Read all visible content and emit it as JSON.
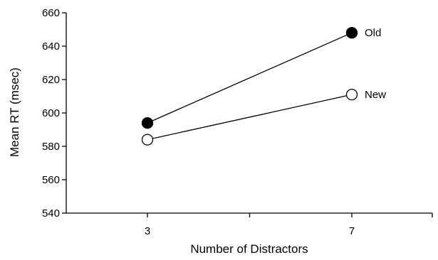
{
  "chart_data": {
    "type": "line",
    "categories": [
      "3",
      "7"
    ],
    "series": [
      {
        "name": "Old",
        "values": [
          594,
          648
        ],
        "marker": "filled-circle",
        "color": "#000000"
      },
      {
        "name": "New",
        "values": [
          584,
          611
        ],
        "marker": "open-circle",
        "color": "#000000"
      }
    ],
    "title": "",
    "xlabel": "Number of Distractors",
    "ylabel": "Mean RT (msec)",
    "ylim": [
      540,
      660
    ],
    "yticks": [
      540,
      560,
      580,
      600,
      620,
      640,
      660
    ],
    "grid": false,
    "legend": "labels at right end of each line"
  }
}
